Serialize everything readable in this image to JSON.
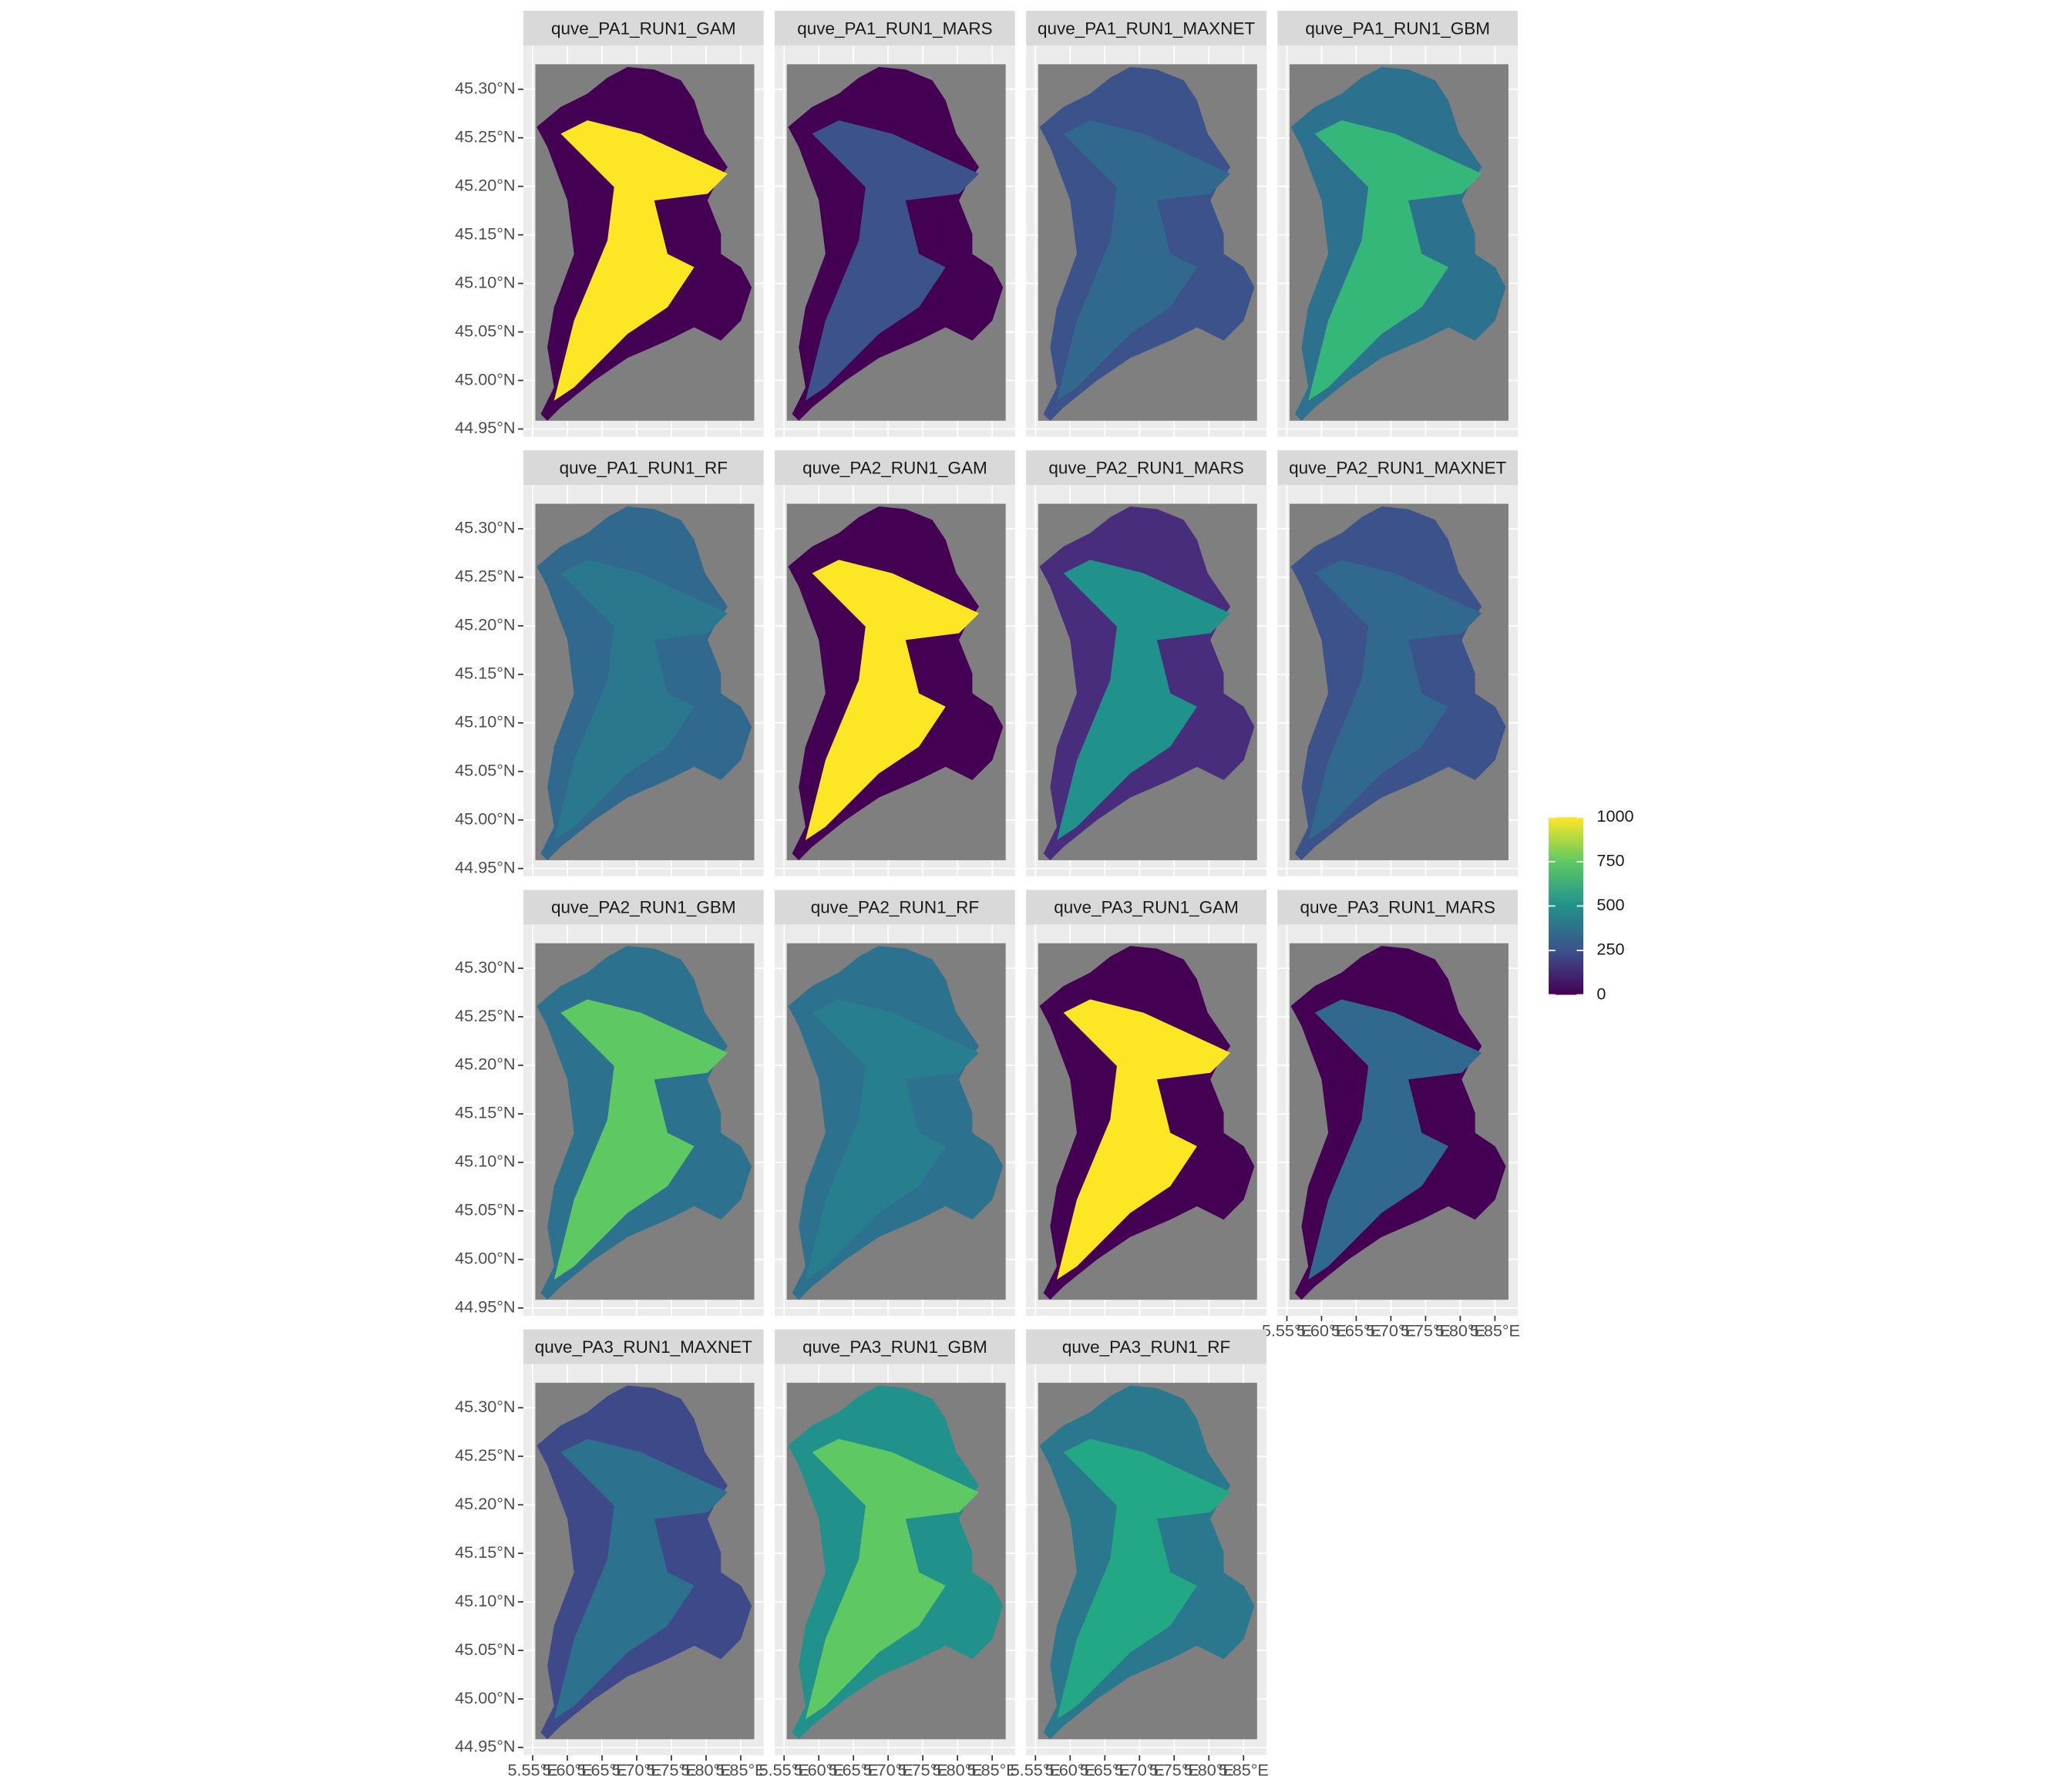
{
  "chart_data": {
    "type": "raster",
    "ncol": 4,
    "grid": true,
    "panels": [
      {
        "name": "quve_PA1_RUN1_GAM",
        "color": "#440154",
        "accent": "#fde725"
      },
      {
        "name": "quve_PA1_RUN1_MARS",
        "color": "#440154",
        "accent": "#3b528b"
      },
      {
        "name": "quve_PA1_RUN1_MAXNET",
        "color": "#3b528b",
        "accent": "#31688e"
      },
      {
        "name": "quve_PA1_RUN1_GBM",
        "color": "#2c728e",
        "accent": "#35b779"
      },
      {
        "name": "quve_PA1_RUN1_RF",
        "color": "#31688e",
        "accent": "#2a788e"
      },
      {
        "name": "quve_PA2_RUN1_GAM",
        "color": "#440154",
        "accent": "#fde725"
      },
      {
        "name": "quve_PA2_RUN1_MARS",
        "color": "#472d7b",
        "accent": "#21918c"
      },
      {
        "name": "quve_PA2_RUN1_MAXNET",
        "color": "#3b528b",
        "accent": "#31688e"
      },
      {
        "name": "quve_PA2_RUN1_GBM",
        "color": "#2c728e",
        "accent": "#5ec962"
      },
      {
        "name": "quve_PA2_RUN1_RF",
        "color": "#2c728e",
        "accent": "#277f8e"
      },
      {
        "name": "quve_PA3_RUN1_GAM",
        "color": "#440154",
        "accent": "#fde725"
      },
      {
        "name": "quve_PA3_RUN1_MARS",
        "color": "#440154",
        "accent": "#31688e"
      },
      {
        "name": "quve_PA3_RUN1_MAXNET",
        "color": "#3e4989",
        "accent": "#2c728e"
      },
      {
        "name": "quve_PA3_RUN1_GBM",
        "color": "#21918c",
        "accent": "#5ec962"
      },
      {
        "name": "quve_PA3_RUN1_RF",
        "color": "#2a788e",
        "accent": "#22a884"
      }
    ],
    "xlim": [
      5.5365,
      5.883
    ],
    "ylim": [
      44.942,
      45.345
    ],
    "xticks": [
      {
        "value": 5.55,
        "label": "5.55°E"
      },
      {
        "value": 5.6,
        "label": "5.60°E"
      },
      {
        "value": 5.65,
        "label": "5.65°E"
      },
      {
        "value": 5.7,
        "label": "5.70°E"
      },
      {
        "value": 5.75,
        "label": "5.75°E"
      },
      {
        "value": 5.8,
        "label": "5.80°E"
      },
      {
        "value": 5.85,
        "label": "5.85°E"
      }
    ],
    "yticks": [
      {
        "value": 44.95,
        "label": "44.95°N"
      },
      {
        "value": 45.0,
        "label": "45.00°N"
      },
      {
        "value": 45.05,
        "label": "45.05°N"
      },
      {
        "value": 45.1,
        "label": "45.10°N"
      },
      {
        "value": 45.15,
        "label": "45.15°N"
      },
      {
        "value": 45.2,
        "label": "45.20°N"
      },
      {
        "value": 45.25,
        "label": "45.25°N"
      },
      {
        "value": 45.3,
        "label": "45.30°N"
      }
    ],
    "legend": {
      "lim": [
        0,
        1000
      ],
      "ticks": [
        0,
        250,
        500,
        750,
        1000
      ],
      "colors": [
        "#440154",
        "#3b528b",
        "#21918c",
        "#5ec962",
        "#fde725"
      ]
    }
  }
}
